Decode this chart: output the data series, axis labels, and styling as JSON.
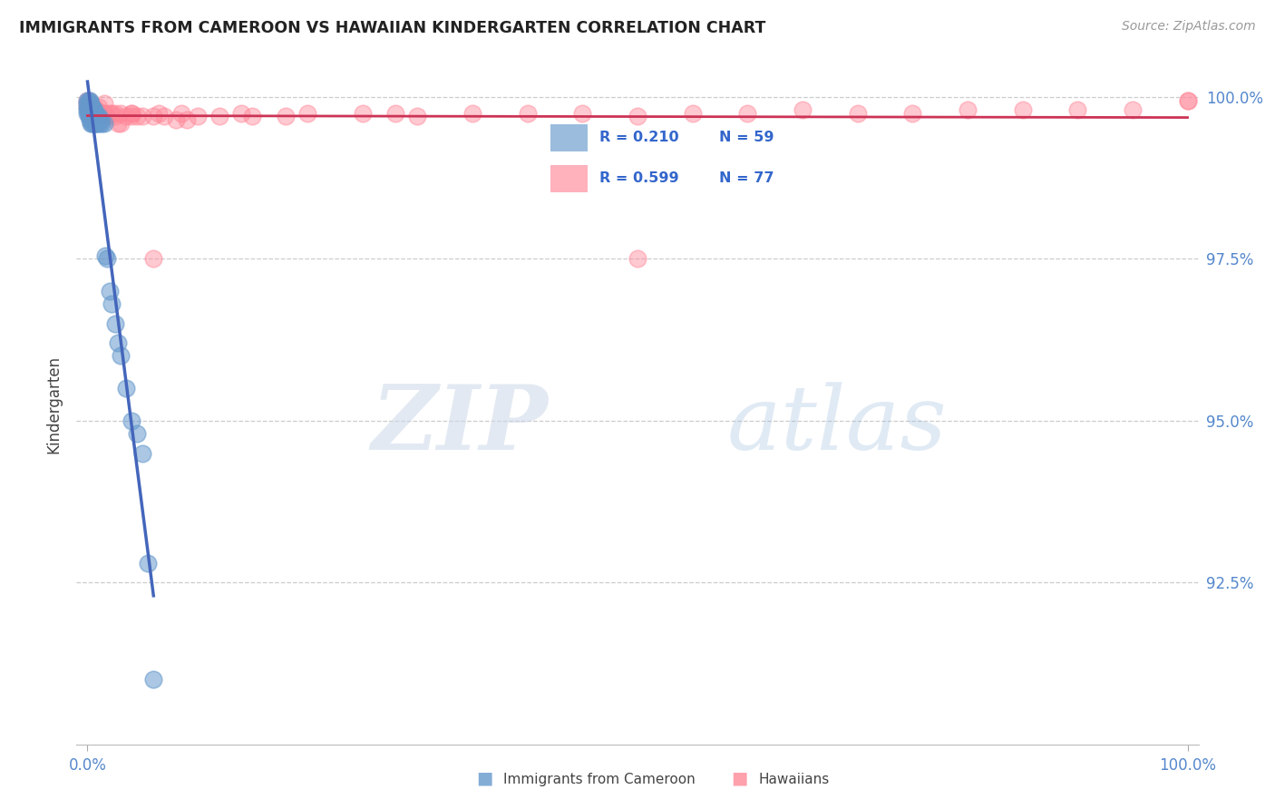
{
  "title": "IMMIGRANTS FROM CAMEROON VS HAWAIIAN KINDERGARTEN CORRELATION CHART",
  "source": "Source: ZipAtlas.com",
  "ylabel": "Kindergarten",
  "legend_R1": "0.210",
  "legend_N1": "59",
  "legend_R2": "0.599",
  "legend_N2": "77",
  "color_blue": "#6699CC",
  "color_pink": "#FF8899",
  "line_color_blue": "#4466BB",
  "line_color_pink": "#CC3355",
  "background_color": "#ffffff",
  "xlim": [
    0.0,
    1.0
  ],
  "ylim": [
    0.9,
    1.005
  ],
  "yticks": [
    1.0,
    0.975,
    0.95,
    0.925
  ],
  "ytick_labels": [
    "100.0%",
    "97.5%",
    "95.0%",
    "92.5%"
  ],
  "xtick_labels": [
    "0.0%",
    "100.0%"
  ],
  "blue_x": [
    0.0,
    0.0,
    0.0,
    0.0,
    0.0,
    0.001,
    0.001,
    0.001,
    0.001,
    0.001,
    0.001,
    0.001,
    0.001,
    0.001,
    0.002,
    0.002,
    0.002,
    0.002,
    0.002,
    0.002,
    0.003,
    0.003,
    0.003,
    0.003,
    0.003,
    0.004,
    0.004,
    0.004,
    0.004,
    0.005,
    0.005,
    0.005,
    0.006,
    0.006,
    0.006,
    0.007,
    0.007,
    0.008,
    0.008,
    0.009,
    0.009,
    0.01,
    0.011,
    0.012,
    0.013,
    0.015,
    0.016,
    0.018,
    0.02,
    0.022,
    0.025,
    0.028,
    0.03,
    0.035,
    0.04,
    0.045,
    0.05,
    0.055,
    0.06
  ],
  "blue_y": [
    0.9995,
    0.999,
    0.9985,
    0.998,
    0.9975,
    0.9995,
    0.999,
    0.999,
    0.9985,
    0.998,
    0.998,
    0.9975,
    0.9975,
    0.997,
    0.9995,
    0.999,
    0.9985,
    0.9975,
    0.997,
    0.9965,
    0.999,
    0.9985,
    0.9975,
    0.997,
    0.996,
    0.9985,
    0.9975,
    0.997,
    0.996,
    0.998,
    0.997,
    0.996,
    0.998,
    0.997,
    0.996,
    0.9975,
    0.996,
    0.997,
    0.996,
    0.997,
    0.996,
    0.997,
    0.996,
    0.9965,
    0.996,
    0.996,
    0.9755,
    0.975,
    0.97,
    0.968,
    0.965,
    0.962,
    0.96,
    0.955,
    0.95,
    0.948,
    0.945,
    0.928,
    0.91
  ],
  "pink_x": [
    0.0,
    0.0,
    0.0,
    0.001,
    0.001,
    0.001,
    0.002,
    0.002,
    0.003,
    0.003,
    0.003,
    0.004,
    0.004,
    0.005,
    0.005,
    0.006,
    0.007,
    0.008,
    0.008,
    0.009,
    0.01,
    0.01,
    0.012,
    0.013,
    0.015,
    0.015,
    0.016,
    0.018,
    0.02,
    0.022,
    0.025,
    0.028,
    0.03,
    0.03,
    0.035,
    0.04,
    0.04,
    0.045,
    0.05,
    0.06,
    0.065,
    0.07,
    0.08,
    0.085,
    0.09,
    0.1,
    0.12,
    0.14,
    0.15,
    0.18,
    0.2,
    0.25,
    0.28,
    0.3,
    0.35,
    0.4,
    0.45,
    0.5,
    0.55,
    0.6,
    0.65,
    0.7,
    0.75,
    0.8,
    0.85,
    0.9,
    0.95,
    1.0,
    1.0,
    0.003,
    0.005,
    0.007,
    0.015,
    0.025,
    0.04,
    0.06,
    0.5
  ],
  "pink_y": [
    0.9995,
    0.999,
    0.9985,
    0.9995,
    0.999,
    0.9985,
    0.999,
    0.9985,
    0.999,
    0.9985,
    0.998,
    0.9985,
    0.998,
    0.9985,
    0.9975,
    0.998,
    0.997,
    0.998,
    0.9975,
    0.997,
    0.9985,
    0.997,
    0.9975,
    0.997,
    0.999,
    0.9975,
    0.997,
    0.997,
    0.9975,
    0.9975,
    0.997,
    0.996,
    0.9975,
    0.996,
    0.997,
    0.9975,
    0.997,
    0.997,
    0.997,
    0.997,
    0.9975,
    0.997,
    0.9965,
    0.9975,
    0.9965,
    0.997,
    0.997,
    0.9975,
    0.997,
    0.997,
    0.9975,
    0.9975,
    0.9975,
    0.997,
    0.9975,
    0.9975,
    0.9975,
    0.997,
    0.9975,
    0.9975,
    0.998,
    0.9975,
    0.9975,
    0.998,
    0.998,
    0.998,
    0.998,
    0.9995,
    0.9995,
    0.9975,
    0.9975,
    0.9975,
    0.9975,
    0.9975,
    0.9975,
    0.975,
    0.975
  ]
}
